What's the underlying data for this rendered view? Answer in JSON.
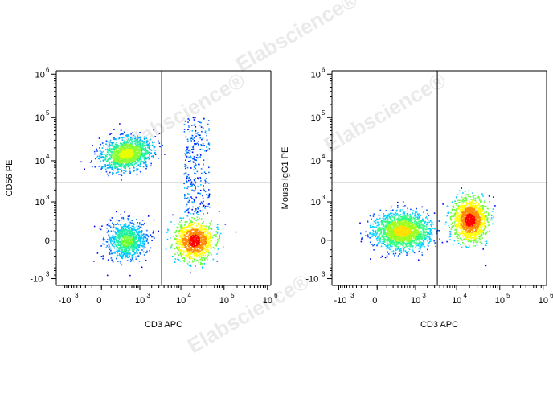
{
  "chart_data": [
    {
      "type": "scatter",
      "xlabel": "CD3 APC",
      "ylabel": "CD56 PE",
      "x_scale": "biexponential",
      "y_scale": "biexponential",
      "x_ticks": [
        {
          "value": -1000,
          "base": "-10",
          "exp": "3"
        },
        {
          "value": 0,
          "base": "0",
          "exp": ""
        },
        {
          "value": 1000,
          "base": "10",
          "exp": "3"
        },
        {
          "value": 10000,
          "base": "10",
          "exp": "4"
        },
        {
          "value": 100000,
          "base": "10",
          "exp": "5"
        },
        {
          "value": 1000000,
          "base": "10",
          "exp": "6"
        }
      ],
      "y_ticks": [
        {
          "value": -1000,
          "base": "-10",
          "exp": "3"
        },
        {
          "value": 0,
          "base": "0",
          "exp": ""
        },
        {
          "value": 1000,
          "base": "10",
          "exp": "3"
        },
        {
          "value": 10000,
          "base": "10",
          "exp": "4"
        },
        {
          "value": 100000,
          "base": "10",
          "exp": "5"
        },
        {
          "value": 1000000,
          "base": "10",
          "exp": "6"
        }
      ],
      "gate_x": 3500,
      "gate_y": 3000,
      "populations": [
        {
          "x": 400,
          "y": 15000,
          "n": 1400,
          "peak": "yellow-green"
        },
        {
          "x": 400,
          "y": 0,
          "n": 900,
          "peak": "green"
        },
        {
          "x": 20000,
          "y": 0,
          "n": 1100,
          "peak": "red"
        },
        {
          "x": 15000,
          "y": 8000,
          "n": 300,
          "peak": "blue"
        }
      ]
    },
    {
      "type": "scatter",
      "xlabel": "CD3 APC",
      "ylabel": "Mouse IgG1 PE",
      "x_scale": "biexponential",
      "y_scale": "biexponential",
      "x_ticks": [
        {
          "value": -1000,
          "base": "-10",
          "exp": "3"
        },
        {
          "value": 0,
          "base": "0",
          "exp": ""
        },
        {
          "value": 1000,
          "base": "10",
          "exp": "3"
        },
        {
          "value": 10000,
          "base": "10",
          "exp": "4"
        },
        {
          "value": 100000,
          "base": "10",
          "exp": "5"
        },
        {
          "value": 1000000,
          "base": "10",
          "exp": "6"
        }
      ],
      "y_ticks": [
        {
          "value": -1000,
          "base": "-10",
          "exp": "3"
        },
        {
          "value": 0,
          "base": "0",
          "exp": ""
        },
        {
          "value": 1000,
          "base": "10",
          "exp": "3"
        },
        {
          "value": 10000,
          "base": "10",
          "exp": "4"
        },
        {
          "value": 100000,
          "base": "10",
          "exp": "5"
        },
        {
          "value": 1000000,
          "base": "10",
          "exp": "6"
        }
      ],
      "gate_x": 3500,
      "gate_y": 3000,
      "populations": [
        {
          "x": 400,
          "y": 100,
          "n": 2000,
          "peak": "yellow"
        },
        {
          "x": 20000,
          "y": 300,
          "n": 1400,
          "peak": "red"
        }
      ]
    }
  ],
  "watermark": {
    "text": "Elabscience",
    "mark": "®",
    "color": "#d9d9d9"
  }
}
